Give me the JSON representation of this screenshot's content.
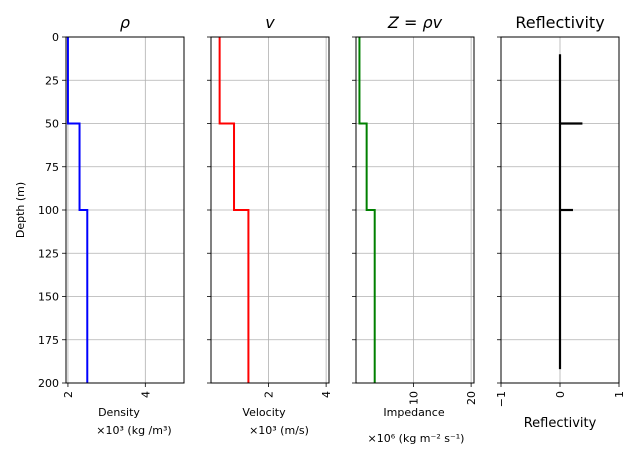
{
  "chart_data": [
    {
      "type": "line",
      "title": "ρ",
      "xlabel": "Density",
      "xlabel_unit": "×10³ (kg /m³)",
      "ylabel": "Depth (m)",
      "ylim": [
        200,
        0
      ],
      "xlim": [
        1.95,
        5.0
      ],
      "x_ticks": [
        2,
        4
      ],
      "y_ticks": [
        0,
        25,
        50,
        75,
        100,
        125,
        150,
        175,
        200
      ],
      "grid": true,
      "color": "#0000ff",
      "series": [
        {
          "depth": [
            0,
            50,
            50,
            100,
            100,
            200
          ],
          "values": [
            2.0,
            2.0,
            2.3,
            2.3,
            2.5,
            2.5
          ]
        }
      ]
    },
    {
      "type": "line",
      "title": "v",
      "xlabel": "Velocity",
      "xlabel_unit": "×10³ (m/s)",
      "ylim": [
        200,
        0
      ],
      "xlim": [
        0.0,
        4.1
      ],
      "x_ticks": [
        2,
        4
      ],
      "grid": true,
      "color": "#ff0000",
      "series": [
        {
          "depth": [
            0,
            50,
            50,
            100,
            100,
            200
          ],
          "values": [
            0.3,
            0.3,
            0.8,
            0.8,
            1.3,
            1.3
          ]
        }
      ]
    },
    {
      "type": "line",
      "title": "Z = ρv",
      "xlabel": "Impedance",
      "xlabel_unit": "×10⁶ (kg m⁻² s⁻¹)",
      "ylim": [
        200,
        0
      ],
      "xlim": [
        0.0,
        20.5
      ],
      "x_ticks": [
        10,
        20
      ],
      "grid": true,
      "color": "#008000",
      "series": [
        {
          "depth": [
            0,
            50,
            50,
            100,
            100,
            200
          ],
          "values": [
            0.6,
            0.6,
            1.85,
            1.85,
            3.25,
            3.25
          ]
        }
      ]
    },
    {
      "type": "line",
      "title": "Reflectivity",
      "xlabel": "Reflectivity",
      "ylim": [
        200,
        0
      ],
      "xlim": [
        -1,
        1
      ],
      "x_ticks": [
        -1,
        0,
        1
      ],
      "grid": true,
      "color": "#000000",
      "spikes": [
        {
          "depth": 50,
          "value": 0.38
        },
        {
          "depth": 100,
          "value": 0.22
        }
      ],
      "baseline": {
        "depth_start": 10,
        "depth_end": 192
      }
    }
  ]
}
